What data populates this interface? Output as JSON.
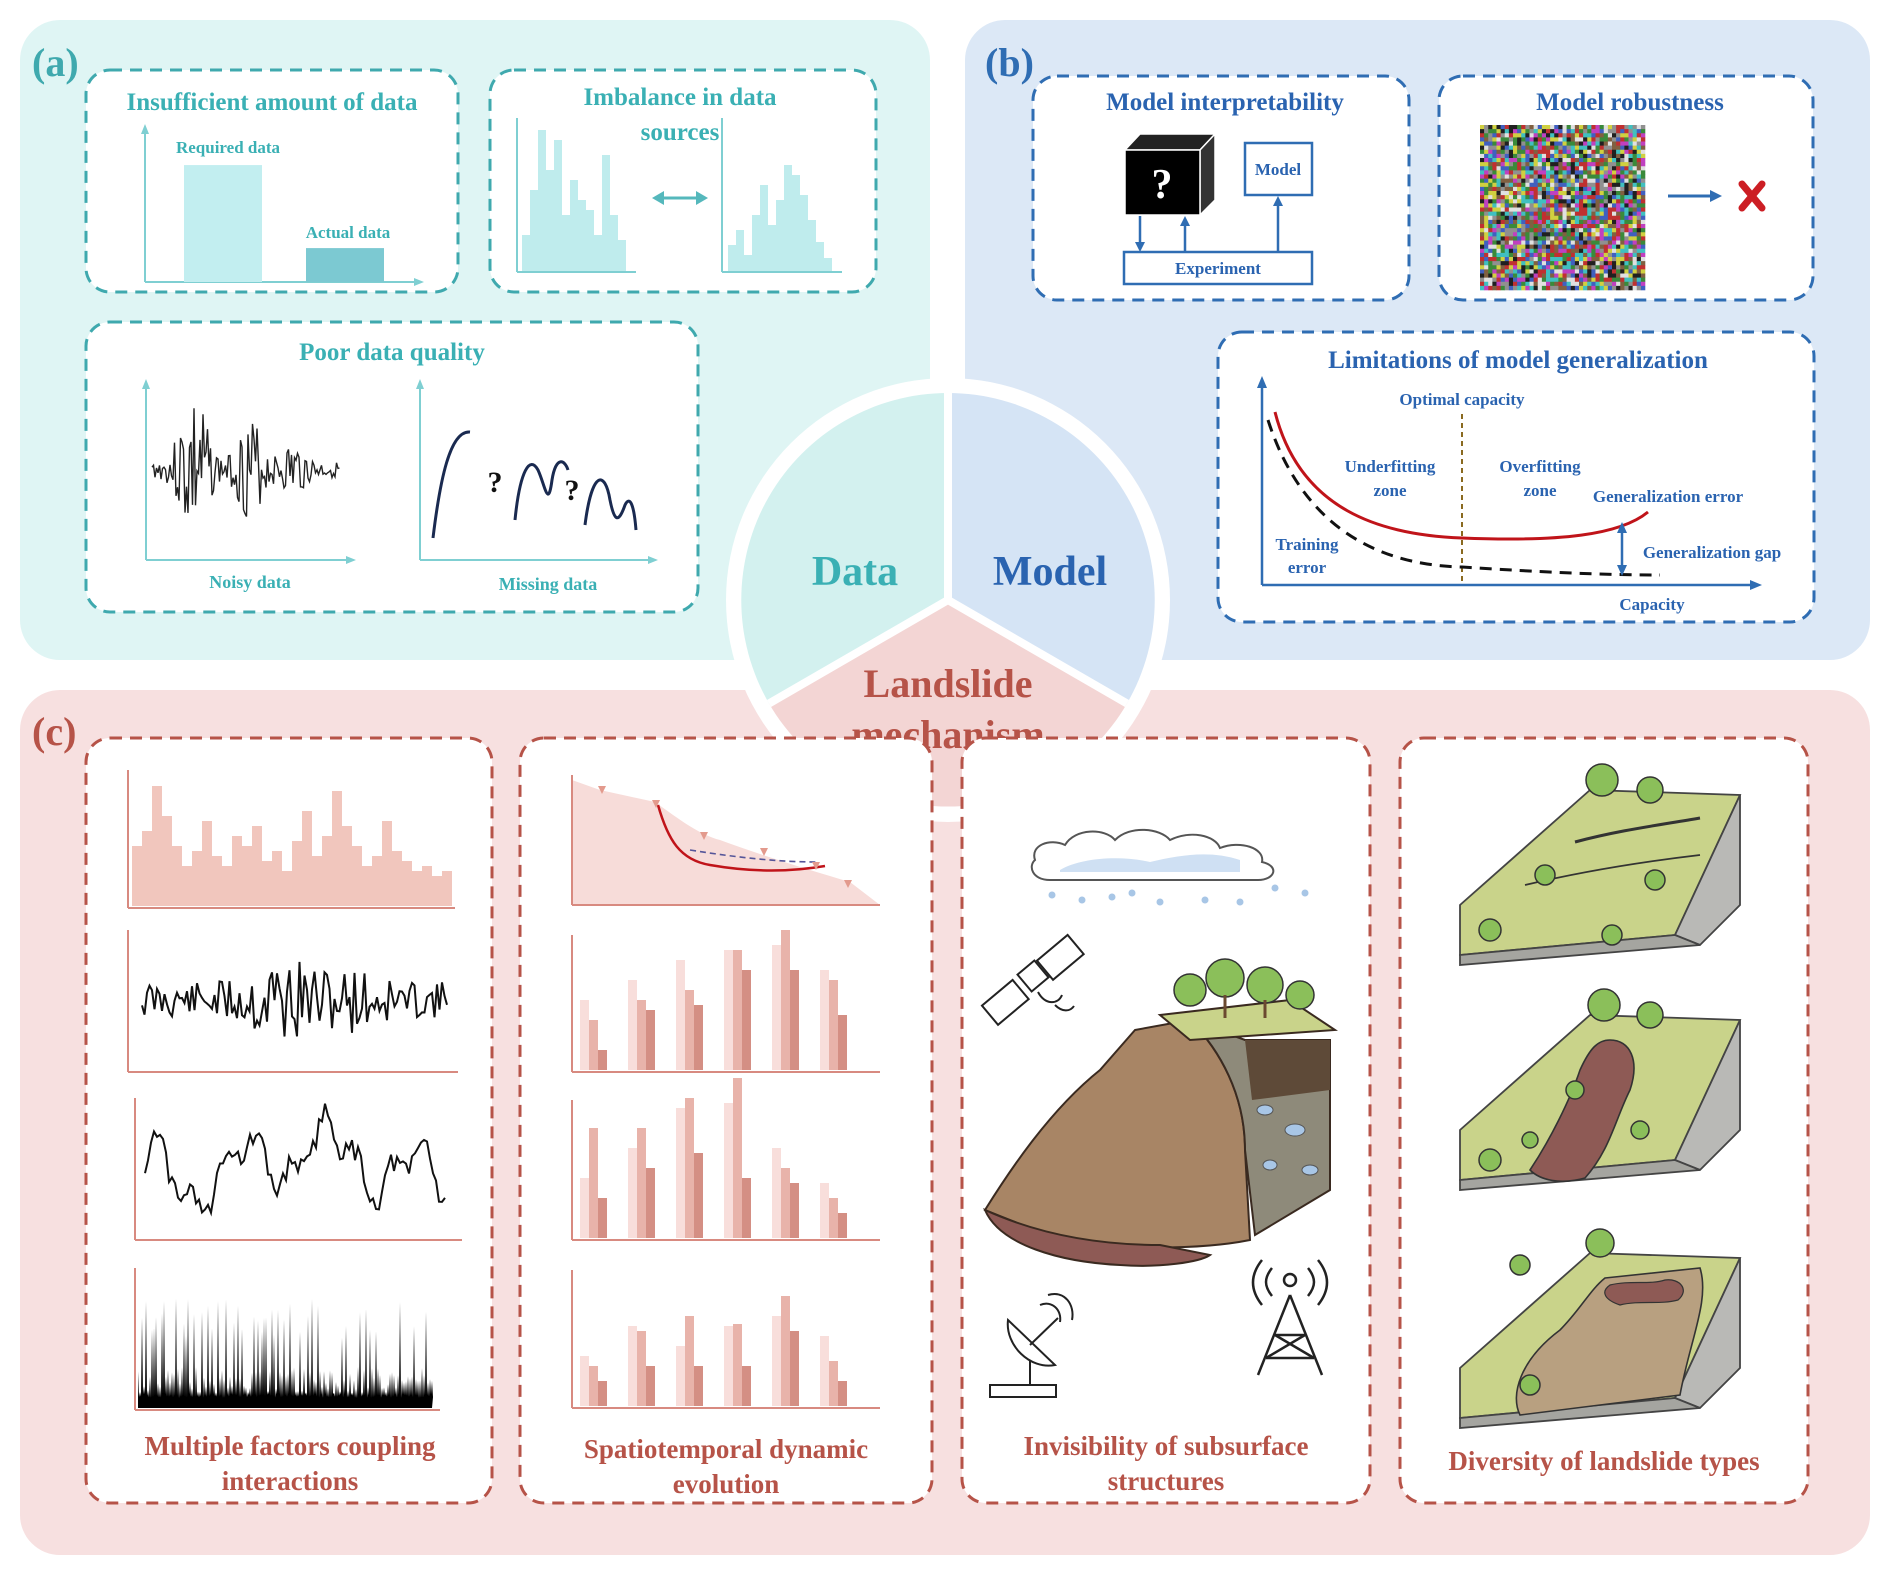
{
  "colors": {
    "panel_a_bg": "#dff5f4",
    "panel_b_bg": "#dce8f6",
    "panel_c_bg": "#f7e0e0",
    "teal": "#3fa9ae",
    "teal_text": "#3ab0b4",
    "blue": "#2f6db3",
    "blue_text": "#2a63b0",
    "red_text": "#b65348",
    "red_line": "#c0141a",
    "pink_fill": "#f1c6bd"
  },
  "center": {
    "data_label": "Data",
    "model_label": "Model",
    "landslide_label_1": "Landslide",
    "landslide_label_2": "mechanism"
  },
  "panel_a": {
    "tag": "(a)",
    "insufficient": {
      "title": "Insufficient amount of data",
      "required_label": "Required data",
      "actual_label": "Actual data"
    },
    "imbalance": {
      "title_1": "Imbalance in data",
      "title_2": "sources"
    },
    "quality": {
      "title": "Poor data quality",
      "noisy_label": "Noisy data",
      "missing_label": "Missing data",
      "question_mark": "?"
    }
  },
  "panel_b": {
    "tag": "(b)",
    "interpretability": {
      "title": "Model interpretability",
      "box_symbol": "?",
      "model_label": "Model",
      "experiment_label": "Experiment"
    },
    "robustness": {
      "title": "Model robustness"
    },
    "generalization": {
      "title": "Limitations of model generalization",
      "optimal": "Optimal capacity",
      "underfitting_1": "Underfitting",
      "underfitting_2": "zone",
      "overfitting_1": "Overfitting",
      "overfitting_2": "zone",
      "gen_error": "Generalization error",
      "training_1": "Training",
      "training_2": "error",
      "gen_gap": "Generalization gap",
      "capacity": "Capacity"
    }
  },
  "panel_c": {
    "tag": "(c)",
    "coupling": {
      "title_1": "Multiple factors coupling",
      "title_2": "interactions"
    },
    "spatiotemporal": {
      "title_1": "Spatiotemporal dynamic",
      "title_2": "evolution"
    },
    "invisibility": {
      "title_1": "Invisibility of subsurface",
      "title_2": "structures"
    },
    "diversity": {
      "title_1": "Diversity of landslide types"
    }
  },
  "chart_data": [
    {
      "type": "bar",
      "title": "Insufficient amount of data",
      "categories": [
        "Required data",
        "Actual data"
      ],
      "values": [
        100,
        29
      ],
      "ylim": [
        0,
        130
      ]
    }
  ]
}
